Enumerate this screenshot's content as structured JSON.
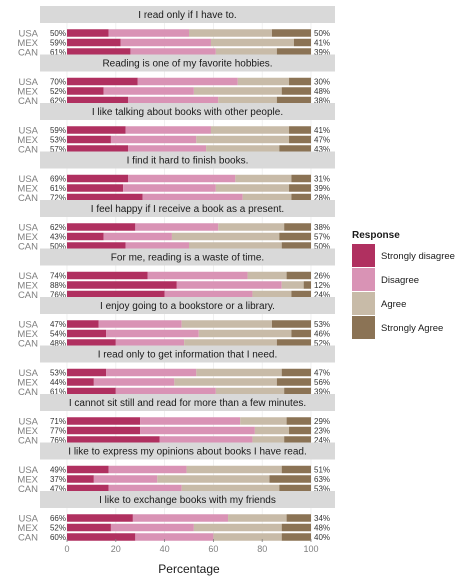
{
  "chart_data": {
    "type": "bar",
    "orientation": "horizontal",
    "stacked": true,
    "xlabel": "Percentage",
    "xlim": [
      0,
      100
    ],
    "xticks": [
      0,
      20,
      40,
      60,
      80,
      100
    ],
    "grid": true,
    "legend_position": "right",
    "legend_title": "Response",
    "categories": [
      "Strongly disagree",
      "Disagree",
      "Agree",
      "Strongly Agree"
    ],
    "colors": [
      "#b03060",
      "#d993b5",
      "#c8bba8",
      "#8b7355"
    ],
    "countries": [
      "USA",
      "MEX",
      "CAN"
    ],
    "panels": [
      {
        "title": "I read only if I have to.",
        "rows": [
          {
            "country": "USA",
            "values": [
              17,
              33,
              34,
              16
            ],
            "left_label": "50%",
            "right_label": "50%"
          },
          {
            "country": "MEX",
            "values": [
              22,
              37,
              34,
              7
            ],
            "left_label": "59%",
            "right_label": "41%"
          },
          {
            "country": "CAN",
            "values": [
              26,
              35,
              25,
              14
            ],
            "left_label": "61%",
            "right_label": "39%"
          }
        ]
      },
      {
        "title": "Reading is one of my favorite hobbies.",
        "rows": [
          {
            "country": "USA",
            "values": [
              29,
              41,
              21,
              9
            ],
            "left_label": "70%",
            "right_label": "30%"
          },
          {
            "country": "MEX",
            "values": [
              15,
              37,
              36,
              12
            ],
            "left_label": "52%",
            "right_label": "48%"
          },
          {
            "country": "CAN",
            "values": [
              25,
              37,
              24,
              14
            ],
            "left_label": "62%",
            "right_label": "38%"
          }
        ]
      },
      {
        "title": "I like talking about books with other people.",
        "rows": [
          {
            "country": "USA",
            "values": [
              24,
              35,
              32,
              9
            ],
            "left_label": "59%",
            "right_label": "41%"
          },
          {
            "country": "MEX",
            "values": [
              18,
              35,
              38,
              9
            ],
            "left_label": "53%",
            "right_label": "47%"
          },
          {
            "country": "CAN",
            "values": [
              25,
              32,
              30,
              13
            ],
            "left_label": "57%",
            "right_label": "43%"
          }
        ]
      },
      {
        "title": "I find it hard to finish books.",
        "rows": [
          {
            "country": "USA",
            "values": [
              25,
              44,
              23,
              8
            ],
            "left_label": "69%",
            "right_label": "31%"
          },
          {
            "country": "MEX",
            "values": [
              23,
              38,
              30,
              9
            ],
            "left_label": "61%",
            "right_label": "39%"
          },
          {
            "country": "CAN",
            "values": [
              31,
              41,
              20,
              8
            ],
            "left_label": "72%",
            "right_label": "28%"
          }
        ]
      },
      {
        "title": "I feel happy if I receive a book as a present.",
        "rows": [
          {
            "country": "USA",
            "values": [
              28,
              34,
              27,
              11
            ],
            "left_label": "62%",
            "right_label": "38%"
          },
          {
            "country": "MEX",
            "values": [
              15,
              28,
              44,
              13
            ],
            "left_label": "43%",
            "right_label": "57%"
          },
          {
            "country": "CAN",
            "values": [
              24,
              26,
              38,
              12
            ],
            "left_label": "50%",
            "right_label": "50%"
          }
        ]
      },
      {
        "title": "For me, reading is a waste of time.",
        "rows": [
          {
            "country": "USA",
            "values": [
              33,
              41,
              16,
              10
            ],
            "left_label": "74%",
            "right_label": "26%"
          },
          {
            "country": "MEX",
            "values": [
              45,
              43,
              9,
              3
            ],
            "left_label": "88%",
            "right_label": "12%"
          },
          {
            "country": "CAN",
            "values": [
              40,
              36,
              16,
              8
            ],
            "left_label": "76%",
            "right_label": "24%"
          }
        ]
      },
      {
        "title": "I enjoy going to a bookstore or a library.",
        "rows": [
          {
            "country": "USA",
            "values": [
              13,
              34,
              37,
              16
            ],
            "left_label": "47%",
            "right_label": "53%"
          },
          {
            "country": "MEX",
            "values": [
              16,
              38,
              38,
              8
            ],
            "left_label": "54%",
            "right_label": "46%"
          },
          {
            "country": "CAN",
            "values": [
              20,
              28,
              38,
              14
            ],
            "left_label": "48%",
            "right_label": "52%"
          }
        ]
      },
      {
        "title": "I read only to get information that I need.",
        "rows": [
          {
            "country": "USA",
            "values": [
              16,
              37,
              35,
              12
            ],
            "left_label": "53%",
            "right_label": "47%"
          },
          {
            "country": "MEX",
            "values": [
              11,
              33,
              42,
              14
            ],
            "left_label": "44%",
            "right_label": "56%"
          },
          {
            "country": "CAN",
            "values": [
              20,
              41,
              28,
              11
            ],
            "left_label": "61%",
            "right_label": "39%"
          }
        ]
      },
      {
        "title": "I cannot sit still and read for more than a few minutes.",
        "rows": [
          {
            "country": "USA",
            "values": [
              30,
              41,
              19,
              10
            ],
            "left_label": "71%",
            "right_label": "29%"
          },
          {
            "country": "MEX",
            "values": [
              30,
              47,
              14,
              9
            ],
            "left_label": "77%",
            "right_label": "23%"
          },
          {
            "country": "CAN",
            "values": [
              38,
              38,
              13,
              11
            ],
            "left_label": "76%",
            "right_label": "24%"
          }
        ]
      },
      {
        "title": "I like to express my opinions about books I have read.",
        "rows": [
          {
            "country": "USA",
            "values": [
              17,
              32,
              39,
              12
            ],
            "left_label": "49%",
            "right_label": "51%"
          },
          {
            "country": "MEX",
            "values": [
              11,
              26,
              46,
              17
            ],
            "left_label": "37%",
            "right_label": "63%"
          },
          {
            "country": "CAN",
            "values": [
              17,
              30,
              40,
              13
            ],
            "left_label": "47%",
            "right_label": "53%"
          }
        ]
      },
      {
        "title": "I like to exchange books with my friends",
        "rows": [
          {
            "country": "USA",
            "values": [
              27,
              39,
              24,
              10
            ],
            "left_label": "66%",
            "right_label": "34%"
          },
          {
            "country": "MEX",
            "values": [
              18,
              34,
              36,
              12
            ],
            "left_label": "52%",
            "right_label": "48%"
          },
          {
            "country": "CAN",
            "values": [
              28,
              32,
              28,
              12
            ],
            "left_label": "60%",
            "right_label": "40%"
          }
        ]
      }
    ]
  }
}
